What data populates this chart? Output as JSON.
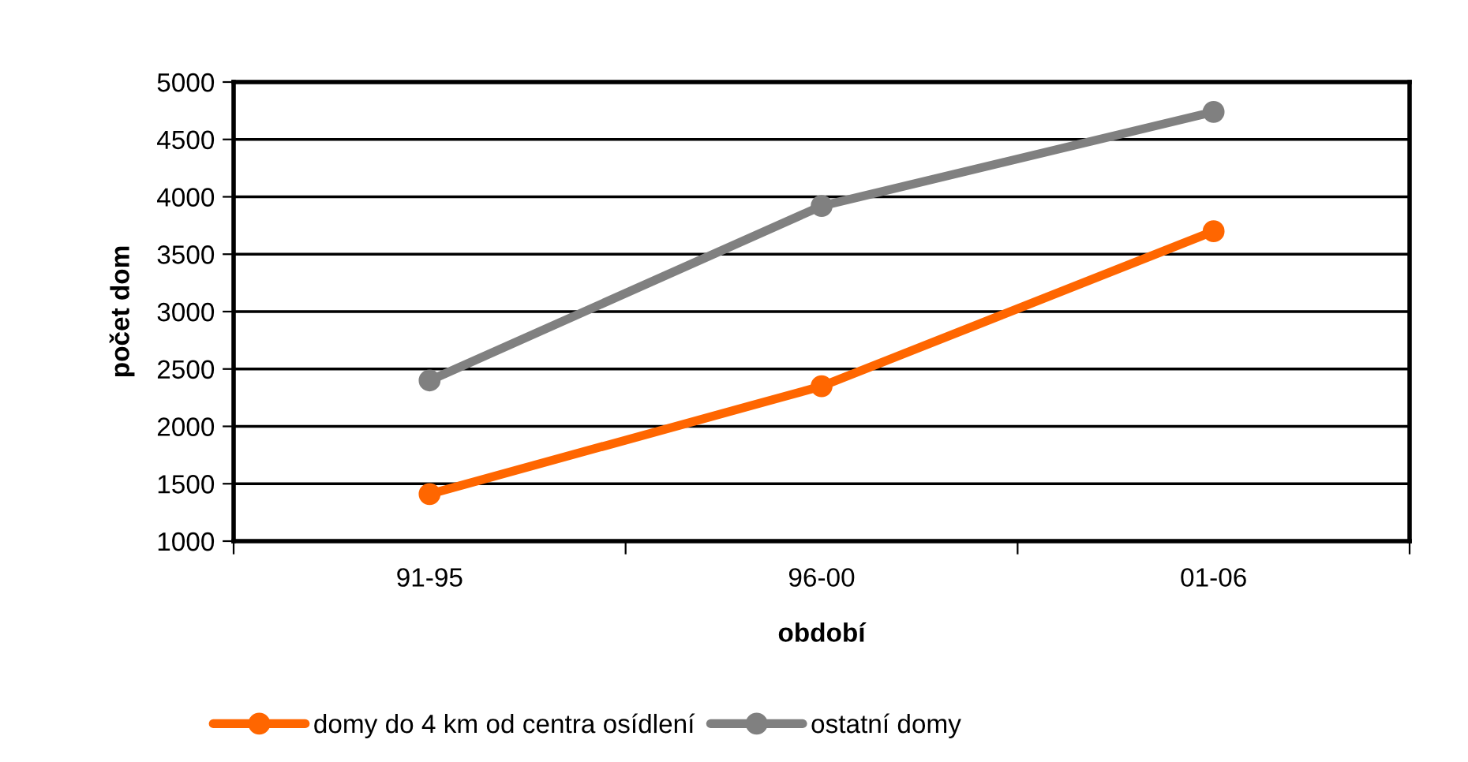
{
  "chart_data": {
    "type": "line",
    "xlabel": "období",
    "ylabel": "počet dom",
    "categories": [
      "91-95",
      "96-00",
      "01-06"
    ],
    "series": [
      {
        "name": "domy do 4 km od centra osídlení",
        "color": "#ff6600",
        "values": [
          1410,
          2350,
          3700
        ]
      },
      {
        "name": "ostatní domy",
        "color": "#808080",
        "values": [
          2400,
          3920,
          4740
        ]
      }
    ],
    "ylim": [
      1000,
      5000
    ],
    "yticks": [
      1000,
      1500,
      2000,
      2500,
      3000,
      3500,
      4000,
      4500,
      5000
    ],
    "grid": "y",
    "legend": "bottom",
    "marker": "circle",
    "line_style": "solid"
  }
}
